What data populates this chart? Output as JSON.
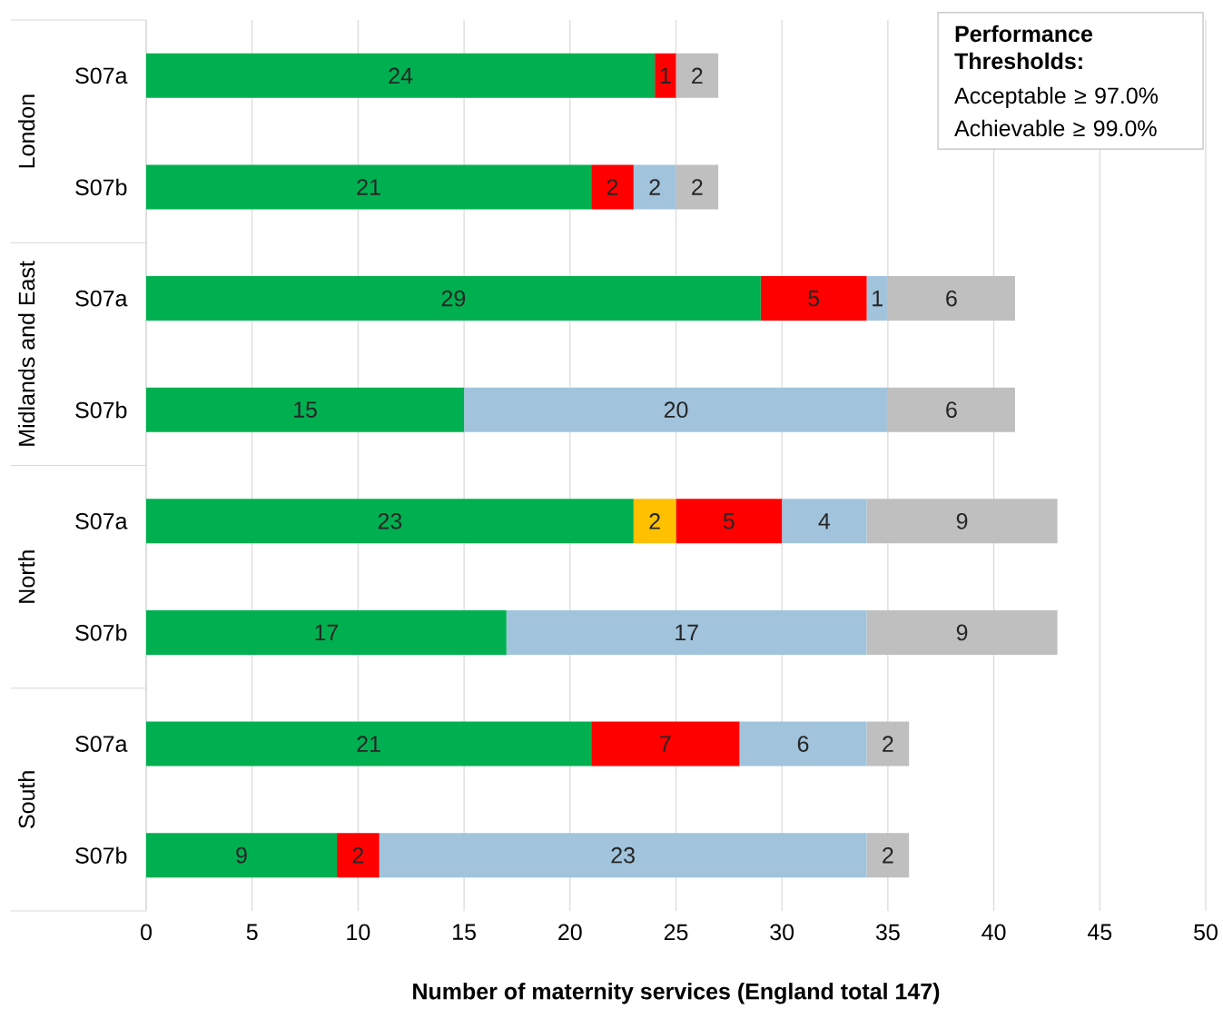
{
  "chart_data": {
    "type": "bar",
    "orientation": "horizontal",
    "stacked": true,
    "data_labels": true,
    "grid": "x",
    "categories": [
      "S07a",
      "S07b",
      "S07a",
      "S07b",
      "S07a",
      "S07b",
      "S07a",
      "S07b"
    ],
    "series": [
      {
        "color": "#00b050",
        "values": [
          24,
          21,
          29,
          15,
          23,
          17,
          21,
          9
        ]
      },
      {
        "color": "#ffc000",
        "values": [
          null,
          null,
          null,
          null,
          2,
          null,
          null,
          null
        ]
      },
      {
        "color": "#ff0000",
        "values": [
          1,
          2,
          5,
          null,
          5,
          null,
          7,
          2
        ]
      },
      {
        "color": "#a1c4dc",
        "values": [
          null,
          2,
          1,
          20,
          4,
          17,
          6,
          23
        ]
      },
      {
        "color": "#bfbfbf",
        "values": [
          2,
          2,
          6,
          6,
          9,
          9,
          2,
          2
        ]
      }
    ],
    "xlim": [
      0,
      50
    ],
    "xticks": [
      0,
      5,
      10,
      15,
      20,
      25,
      30,
      35,
      40,
      45,
      50
    ],
    "xlabel": "Number of maternity services (England total 147)",
    "annotations": [
      "London",
      "Midlands and East",
      "North",
      "South",
      "Performance Thresholds:",
      "Acceptable ≥ 97.0%",
      "Achievable ≥ 99.0%"
    ]
  }
}
